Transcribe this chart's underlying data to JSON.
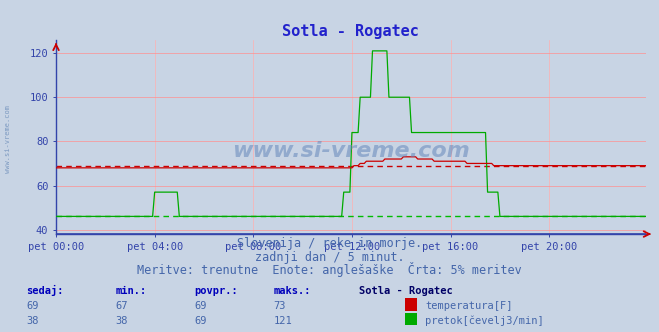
{
  "title": "Sotla - Rogatec",
  "title_color": "#2222cc",
  "title_fontsize": 11,
  "bg_color": "#c8d4e4",
  "plot_bg_color": "#c8d4e4",
  "fig_bg_color": "#c8d4e4",
  "ylim": [
    38,
    126
  ],
  "yticks": [
    40,
    60,
    80,
    100,
    120
  ],
  "xlim_max": 287,
  "xtick_labels": [
    "pet 00:00",
    "pet 04:00",
    "pet 08:00",
    "pet 12:00",
    "pet 16:00",
    "pet 20:00"
  ],
  "xtick_positions": [
    0,
    48,
    96,
    144,
    192,
    240
  ],
  "grid_color_h": "#ff9090",
  "grid_color_v": "#ffb0b0",
  "temp_color": "#cc0000",
  "flow_color": "#00aa00",
  "temp_ref_color": "#cc0000",
  "flow_ref_color": "#00bb00",
  "temp_ref_value": 69,
  "flow_ref_value": 46,
  "watermark_color": "#6688bb",
  "subtitle1": "Slovenija / reke in morje.",
  "subtitle2": "zadnji dan / 5 minut.",
  "subtitle3": "Meritve: trenutne  Enote: anglešaške  Črta: 5% meritev",
  "subtitle_color": "#4466aa",
  "subtitle_fontsize": 8.5,
  "table_header_color": "#0000bb",
  "table_data_color": "#4466aa",
  "table_bold_color": "#000066",
  "temp_data": [
    68,
    68,
    68,
    68,
    68,
    68,
    68,
    68,
    68,
    68,
    68,
    68,
    68,
    68,
    68,
    68,
    68,
    68,
    68,
    68,
    68,
    68,
    68,
    68,
    68,
    68,
    68,
    68,
    68,
    68,
    68,
    68,
    68,
    68,
    68,
    68,
    68,
    68,
    68,
    68,
    68,
    68,
    68,
    68,
    68,
    68,
    68,
    68,
    68,
    68,
    68,
    68,
    68,
    68,
    68,
    68,
    68,
    68,
    68,
    68,
    68,
    68,
    68,
    68,
    68,
    68,
    68,
    68,
    68,
    68,
    68,
    68,
    68,
    68,
    68,
    68,
    68,
    68,
    68,
    68,
    68,
    68,
    68,
    68,
    68,
    68,
    68,
    68,
    68,
    68,
    68,
    68,
    68,
    68,
    68,
    68,
    68,
    68,
    68,
    68,
    68,
    68,
    68,
    68,
    68,
    68,
    68,
    68,
    68,
    68,
    68,
    68,
    68,
    68,
    68,
    68,
    68,
    68,
    68,
    68,
    68,
    68,
    68,
    68,
    68,
    68,
    68,
    68,
    68,
    68,
    68,
    68,
    68,
    68,
    68,
    68,
    68,
    68,
    68,
    68,
    68,
    68,
    68,
    68,
    68,
    69,
    69,
    69,
    70,
    70,
    70,
    71,
    71,
    71,
    71,
    71,
    71,
    71,
    71,
    71,
    72,
    72,
    72,
    72,
    72,
    72,
    72,
    72,
    72,
    73,
    73,
    73,
    73,
    73,
    73,
    73,
    72,
    72,
    72,
    72,
    72,
    72,
    72,
    72,
    71,
    71,
    71,
    71,
    71,
    71,
    71,
    71,
    71,
    71,
    71,
    71,
    71,
    71,
    71,
    71,
    70,
    70,
    70,
    70,
    70,
    70,
    70,
    70,
    70,
    70,
    70,
    70,
    70,
    69,
    69,
    69,
    69,
    69,
    69,
    69,
    69,
    69,
    69,
    69,
    69,
    69,
    69,
    69,
    69,
    69,
    69,
    69,
    69,
    69,
    69,
    69,
    69,
    69,
    69,
    69,
    69,
    69,
    69,
    69,
    69,
    69,
    69,
    69,
    69,
    69,
    69,
    69,
    69,
    69,
    69,
    69,
    69,
    69,
    69,
    69,
    69,
    69,
    69,
    69,
    69,
    69,
    69,
    69,
    69,
    69,
    69,
    69,
    69,
    69,
    69,
    69,
    69,
    69,
    69,
    69,
    69,
    69,
    69,
    69,
    69,
    69,
    69,
    69
  ],
  "flow_data": [
    46,
    46,
    46,
    46,
    46,
    46,
    46,
    46,
    46,
    46,
    46,
    46,
    46,
    46,
    46,
    46,
    46,
    46,
    46,
    46,
    46,
    46,
    46,
    46,
    46,
    46,
    46,
    46,
    46,
    46,
    46,
    46,
    46,
    46,
    46,
    46,
    46,
    46,
    46,
    46,
    46,
    46,
    46,
    46,
    46,
    46,
    46,
    46,
    57,
    57,
    57,
    57,
    57,
    57,
    57,
    57,
    57,
    57,
    57,
    57,
    46,
    46,
    46,
    46,
    46,
    46,
    46,
    46,
    46,
    46,
    46,
    46,
    46,
    46,
    46,
    46,
    46,
    46,
    46,
    46,
    46,
    46,
    46,
    46,
    46,
    46,
    46,
    46,
    46,
    46,
    46,
    46,
    46,
    46,
    46,
    46,
    46,
    46,
    46,
    46,
    46,
    46,
    46,
    46,
    46,
    46,
    46,
    46,
    46,
    46,
    46,
    46,
    46,
    46,
    46,
    46,
    46,
    46,
    46,
    46,
    46,
    46,
    46,
    46,
    46,
    46,
    46,
    46,
    46,
    46,
    46,
    46,
    46,
    46,
    46,
    46,
    46,
    46,
    46,
    46,
    57,
    57,
    57,
    57,
    84,
    84,
    84,
    84,
    100,
    100,
    100,
    100,
    100,
    100,
    121,
    121,
    121,
    121,
    121,
    121,
    121,
    121,
    100,
    100,
    100,
    100,
    100,
    100,
    100,
    100,
    100,
    100,
    100,
    84,
    84,
    84,
    84,
    84,
    84,
    84,
    84,
    84,
    84,
    84,
    84,
    84,
    84,
    84,
    84,
    84,
    84,
    84,
    84,
    84,
    84,
    84,
    84,
    84,
    84,
    84,
    84,
    84,
    84,
    84,
    84,
    84,
    84,
    84,
    84,
    84,
    57,
    57,
    57,
    57,
    57,
    57,
    46,
    46,
    46,
    46,
    46,
    46,
    46,
    46,
    46,
    46,
    46,
    46,
    46,
    46,
    46,
    46,
    46,
    46,
    46,
    46,
    46,
    46,
    46,
    46,
    46,
    46,
    46,
    46,
    46,
    46,
    46,
    46,
    46,
    46,
    46,
    46,
    46,
    46,
    46,
    46,
    46,
    46,
    46,
    46,
    46,
    46,
    46,
    46,
    46,
    46,
    46,
    46,
    46,
    46,
    46,
    46,
    46,
    46,
    46,
    46,
    46,
    46,
    46,
    46,
    46,
    46,
    46,
    46,
    46,
    46,
    46,
    46
  ],
  "arrow_color": "#cc0000",
  "axis_color": "#3344aa",
  "tick_color": "#3344aa",
  "tick_fontsize": 7.5,
  "sidebar_text": "www.si-vreme.com",
  "sidebar_color": "#7090bb"
}
